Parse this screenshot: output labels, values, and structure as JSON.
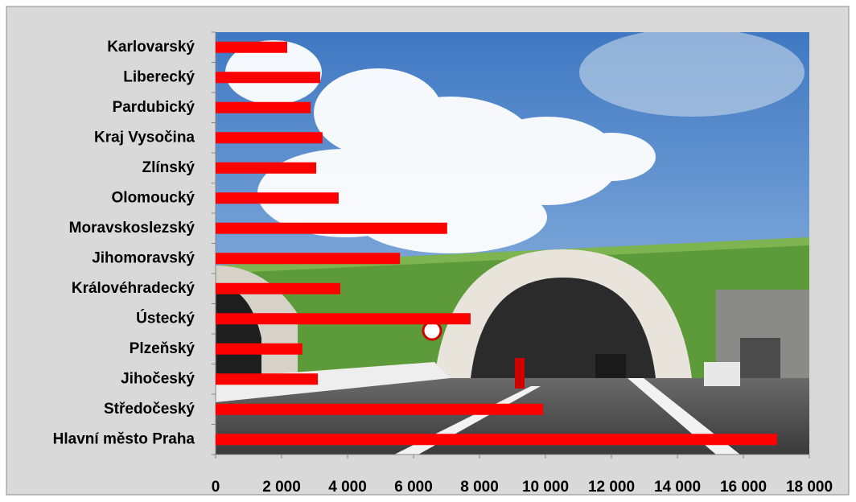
{
  "chart_data": {
    "type": "bar",
    "orientation": "horizontal",
    "categories": [
      "Karlovarský",
      "Liberecký",
      "Pardubický",
      "Kraj Vysočina",
      "Zlínský",
      "Olomoucký",
      "Moravskoslezský",
      "Jihomoravský",
      "Královéhradecký",
      "Ústecký",
      "Plzeňský",
      "Jihočeský",
      "Středočeský",
      "Hlavní město Praha"
    ],
    "values": [
      2170,
      3170,
      2880,
      3240,
      3050,
      3730,
      7020,
      5590,
      3780,
      7730,
      2630,
      3100,
      9930,
      17020
    ],
    "color": "#ff0000",
    "xlim": [
      0,
      18000
    ],
    "xticks": [
      0,
      {
        "value": 2000,
        "label": "2 000"
      },
      {
        "value": 4000,
        "label": "4 000"
      },
      {
        "value": 6000,
        "label": "6 000"
      },
      {
        "value": 8000,
        "label": "8 000"
      },
      {
        "value": 10000,
        "label": "10 000"
      },
      {
        "value": 12000,
        "label": "12 000"
      },
      {
        "value": 14000,
        "label": "14 000"
      },
      {
        "value": 16000,
        "label": "16 000"
      },
      {
        "value": 18000,
        "label": "18 000"
      }
    ],
    "grid": false
  }
}
